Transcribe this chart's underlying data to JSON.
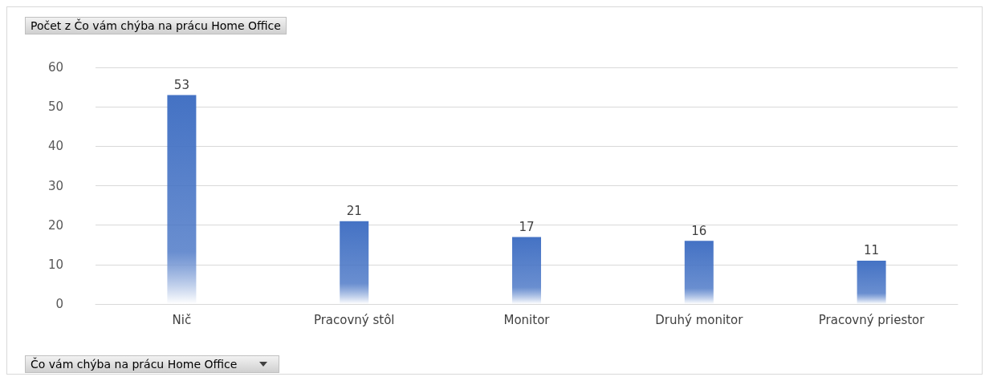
{
  "chart_data": {
    "type": "bar",
    "title": "Počet z Čo vám chýba na prácu Home Office",
    "xlabel": "Čo vám chýba na prácu Home Office",
    "categories": [
      "Nič",
      "Pracovný stôl",
      "Monitor",
      "Druhý monitor",
      "Pracovný priestor"
    ],
    "values": [
      53,
      21,
      17,
      16,
      11
    ],
    "color": "#4472c4",
    "data_labels": true,
    "ylim": [
      0,
      60
    ],
    "yticks": [
      0,
      10,
      20,
      30,
      40,
      50,
      60
    ],
    "grid": "y"
  }
}
